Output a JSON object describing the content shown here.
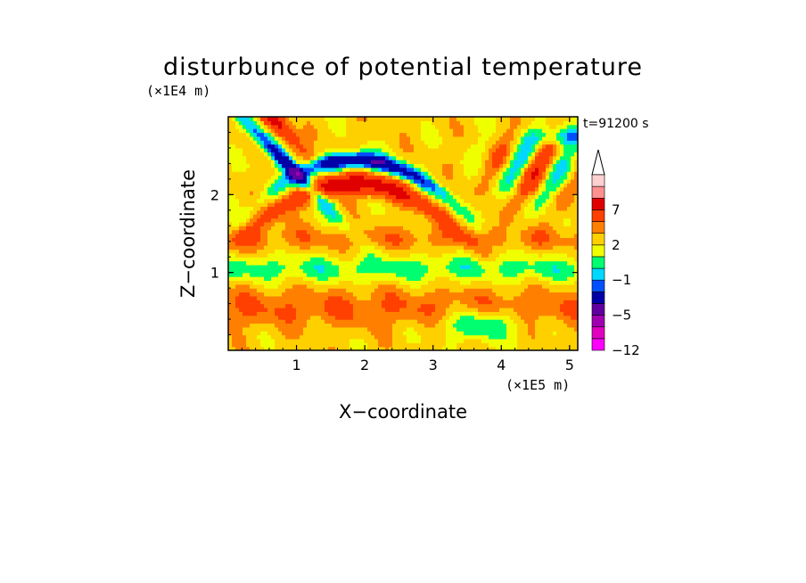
{
  "chart_data": {
    "type": "heatmap",
    "title": "disturbunce of potential temperature",
    "xlabel": "X−coordinate",
    "ylabel": "Z−coordinate",
    "x_unit": "(×1E5 m)",
    "y_unit": "(×1E4 m)",
    "time_label": "t=91200 s",
    "x_range": [
      0,
      5.12
    ],
    "y_range": [
      0,
      3.0
    ],
    "x_ticks": [
      "1",
      "2",
      "3",
      "4",
      "5"
    ],
    "y_ticks": [
      "1",
      "2"
    ],
    "colorbar": {
      "levels": [
        -12,
        -9,
        -7,
        -5,
        -3,
        -2,
        -1,
        0,
        1,
        2,
        3,
        5,
        7,
        9
      ],
      "tick_labels": [
        "−12",
        "−5",
        "−1",
        "2",
        "7"
      ],
      "colors": [
        "#ff00ff",
        "#e000c0",
        "#a000b0",
        "#6000a0",
        "#0000a8",
        "#0050ff",
        "#00d8ff",
        "#00ff70",
        "#f0ff00",
        "#ffd000",
        "#ff8000",
        "#ff4000",
        "#e00000",
        "#ff9090",
        "#ffd0d0"
      ],
      "extend": "max"
    }
  }
}
